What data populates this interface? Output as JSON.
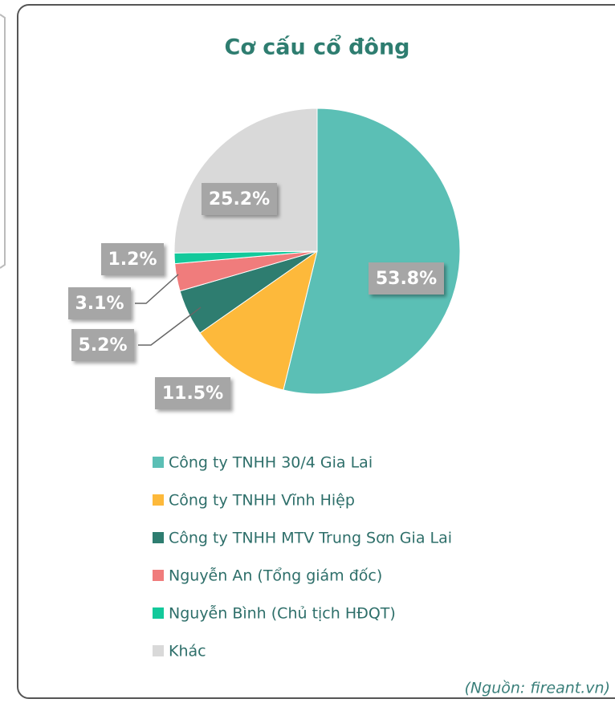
{
  "chart_data": {
    "type": "pie",
    "title": "Cơ cấu cổ đông",
    "categories": [
      "Công ty TNHH 30/4 Gia Lai",
      "Công ty TNHH Vĩnh Hiệp",
      "Công ty TNHH MTV Trung Sơn Gia Lai",
      "Nguyễn An (Tổng giám đốc)",
      "Nguyễn Bình (Chủ tịch HĐQT)",
      "Khác"
    ],
    "values": [
      53.8,
      11.5,
      5.2,
      3.1,
      1.2,
      25.2
    ],
    "value_labels": [
      "53.8%",
      "11.5%",
      "5.2%",
      "3.1%",
      "1.2%",
      "25.2%"
    ],
    "colors": [
      "#5bbfb5",
      "#fdb93b",
      "#2e7d70",
      "#f07c7c",
      "#13c99b",
      "#d9d9d9"
    ],
    "legend": "bottom",
    "source": "(Nguồn: fireant.vn)"
  }
}
